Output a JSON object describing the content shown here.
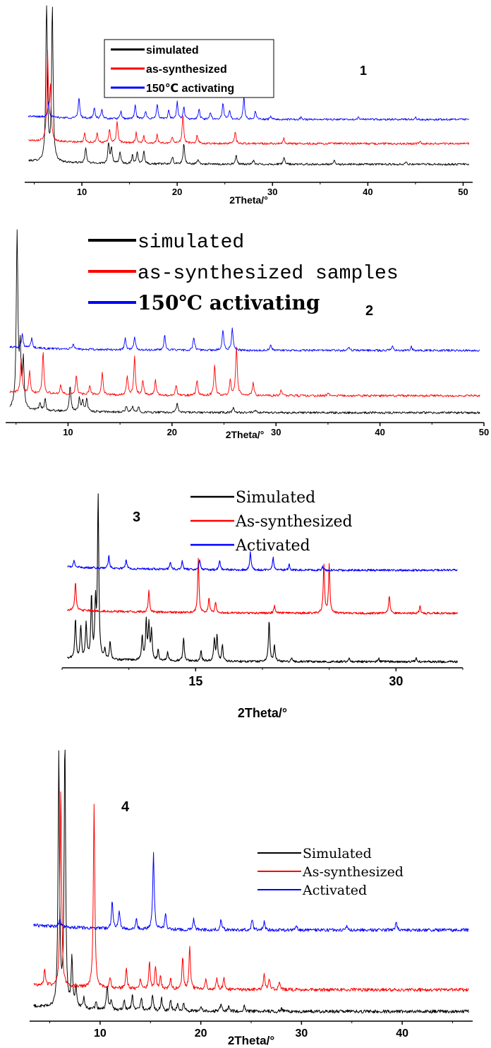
{
  "chart_data": [
    {
      "type": "line",
      "panel_label": "1",
      "xlabel": "2Theta/°",
      "xlim": [
        4,
        51
      ],
      "ticks": [
        "10",
        "20",
        "30",
        "40",
        "50"
      ],
      "tick_values": [
        10,
        20,
        30,
        40,
        50
      ],
      "legend_placement": "top-center",
      "series": [
        {
          "name": "simulated",
          "color": "#000000",
          "baseline": 0.08,
          "peaks": [
            [
              6.3,
              0.98
            ],
            [
              6.9,
              0.9
            ],
            [
              10.4,
              0.09
            ],
            [
              12.8,
              0.12
            ],
            [
              13.1,
              0.09
            ],
            [
              14.0,
              0.07
            ],
            [
              15.3,
              0.05
            ],
            [
              15.8,
              0.07
            ],
            [
              16.5,
              0.08
            ],
            [
              19.5,
              0.04
            ],
            [
              20.7,
              0.12
            ],
            [
              22.2,
              0.03
            ],
            [
              26.2,
              0.05
            ],
            [
              28.0,
              0.02
            ],
            [
              31.2,
              0.04
            ],
            [
              36.5,
              0.02
            ],
            [
              44.0,
              0.015
            ]
          ]
        },
        {
          "name": "as-synthesized",
          "color": "#ff0000",
          "baseline": 0.2,
          "peaks": [
            [
              6.4,
              0.5
            ],
            [
              6.7,
              0.3
            ],
            [
              10.3,
              0.05
            ],
            [
              11.6,
              0.06
            ],
            [
              12.9,
              0.08
            ],
            [
              13.7,
              0.13
            ],
            [
              15.7,
              0.06
            ],
            [
              16.5,
              0.04
            ],
            [
              17.9,
              0.05
            ],
            [
              19.5,
              0.04
            ],
            [
              20.6,
              0.17
            ],
            [
              22.1,
              0.05
            ],
            [
              26.1,
              0.07
            ],
            [
              31.2,
              0.03
            ],
            [
              45.5,
              0.01
            ]
          ]
        },
        {
          "name": "150℃ activating",
          "color": "#0000ff",
          "baseline": 0.34,
          "peaks": [
            [
              6.5,
              0.09
            ],
            [
              9.7,
              0.12
            ],
            [
              11.3,
              0.06
            ],
            [
              12.1,
              0.05
            ],
            [
              14.1,
              0.04
            ],
            [
              15.6,
              0.08
            ],
            [
              16.7,
              0.05
            ],
            [
              17.9,
              0.09
            ],
            [
              19.1,
              0.05
            ],
            [
              20.0,
              0.1
            ],
            [
              20.7,
              0.07
            ],
            [
              22.3,
              0.06
            ],
            [
              23.5,
              0.04
            ],
            [
              24.8,
              0.1
            ],
            [
              25.5,
              0.05
            ],
            [
              27.0,
              0.13
            ],
            [
              28.2,
              0.05
            ],
            [
              29.8,
              0.02
            ],
            [
              33.0,
              0.015
            ],
            [
              39.0,
              0.015
            ],
            [
              45.0,
              0.01
            ]
          ]
        }
      ]
    },
    {
      "type": "line",
      "panel_label": "2",
      "xlabel": "2Theta/°",
      "xlim": [
        4,
        50
      ],
      "ticks": [
        "10",
        "20",
        "30",
        "40",
        "50"
      ],
      "tick_values": [
        10,
        20,
        30,
        40,
        50
      ],
      "legend_placement": "top-center",
      "series": [
        {
          "name": "simulated",
          "color": "#000000",
          "baseline": 0.03,
          "peaks": [
            [
              5.1,
              0.95
            ],
            [
              5.4,
              0.3
            ],
            [
              5.7,
              0.25
            ],
            [
              7.3,
              0.04
            ],
            [
              7.8,
              0.06
            ],
            [
              10.2,
              0.14
            ],
            [
              11.1,
              0.07
            ],
            [
              11.4,
              0.06
            ],
            [
              11.8,
              0.07
            ],
            [
              15.6,
              0.03
            ],
            [
              16.2,
              0.03
            ],
            [
              16.8,
              0.03
            ],
            [
              20.5,
              0.05
            ],
            [
              25.9,
              0.03
            ],
            [
              28.0,
              0.01
            ]
          ]
        },
        {
          "name": "as-synthesized samples",
          "color": "#ff0000",
          "baseline": 0.12,
          "peaks": [
            [
              5.5,
              0.18
            ],
            [
              6.3,
              0.12
            ],
            [
              7.6,
              0.22
            ],
            [
              9.3,
              0.05
            ],
            [
              10.8,
              0.1
            ],
            [
              12.1,
              0.05
            ],
            [
              13.3,
              0.12
            ],
            [
              15.7,
              0.1
            ],
            [
              16.4,
              0.2
            ],
            [
              17.2,
              0.08
            ],
            [
              18.4,
              0.08
            ],
            [
              20.4,
              0.05
            ],
            [
              22.4,
              0.08
            ],
            [
              24.1,
              0.16
            ],
            [
              25.6,
              0.08
            ],
            [
              26.2,
              0.26
            ],
            [
              27.8,
              0.07
            ],
            [
              30.5,
              0.03
            ],
            [
              35.0,
              0.015
            ]
          ]
        },
        {
          "name": "150℃ activating",
          "color": "#0000ff",
          "baseline": 0.36,
          "peaks": [
            [
              5.6,
              0.07
            ],
            [
              6.5,
              0.05
            ],
            [
              10.5,
              0.03
            ],
            [
              15.5,
              0.06
            ],
            [
              16.4,
              0.07
            ],
            [
              19.3,
              0.08
            ],
            [
              22.1,
              0.07
            ],
            [
              24.9,
              0.11
            ],
            [
              25.8,
              0.12
            ],
            [
              29.5,
              0.03
            ],
            [
              37.0,
              0.02
            ],
            [
              41.2,
              0.03
            ],
            [
              43.0,
              0.02
            ]
          ]
        }
      ]
    },
    {
      "type": "line",
      "panel_label": "3",
      "xlabel": "2Theta/°",
      "xlim": [
        5,
        35
      ],
      "ticks": [
        "15",
        "30"
      ],
      "tick_values": [
        15,
        30
      ],
      "legend_placement": "top-right",
      "series": [
        {
          "name": "Simulated",
          "color": "#000000",
          "baseline": 0.01,
          "peaks": [
            [
              6.0,
              0.22
            ],
            [
              6.4,
              0.18
            ],
            [
              6.8,
              0.2
            ],
            [
              7.2,
              0.35
            ],
            [
              7.5,
              0.3
            ],
            [
              7.7,
              0.9
            ],
            [
              8.2,
              0.05
            ],
            [
              8.6,
              0.1
            ],
            [
              11.0,
              0.14
            ],
            [
              11.3,
              0.22
            ],
            [
              11.5,
              0.2
            ],
            [
              11.7,
              0.16
            ],
            [
              12.2,
              0.06
            ],
            [
              12.9,
              0.05
            ],
            [
              14.1,
              0.13
            ],
            [
              15.4,
              0.06
            ],
            [
              16.4,
              0.12
            ],
            [
              16.6,
              0.14
            ],
            [
              17.0,
              0.09
            ],
            [
              20.5,
              0.23
            ],
            [
              20.9,
              0.09
            ],
            [
              22.2,
              0.02
            ],
            [
              26.5,
              0.02
            ],
            [
              28.7,
              0.02
            ],
            [
              31.5,
              0.02
            ]
          ]
        },
        {
          "name": "As-synthesized",
          "color": "#ff0000",
          "baseline": 0.28,
          "peaks": [
            [
              6.0,
              0.16
            ],
            [
              11.5,
              0.12
            ],
            [
              15.2,
              0.3
            ],
            [
              16.0,
              0.08
            ],
            [
              16.5,
              0.06
            ],
            [
              20.9,
              0.04
            ],
            [
              24.6,
              0.27
            ],
            [
              25.0,
              0.27
            ],
            [
              29.5,
              0.1
            ],
            [
              31.8,
              0.04
            ]
          ]
        },
        {
          "name": "Activated",
          "color": "#0000ff",
          "baseline": 0.52,
          "peaks": [
            [
              5.9,
              0.04
            ],
            [
              8.5,
              0.07
            ],
            [
              9.8,
              0.05
            ],
            [
              13.1,
              0.04
            ],
            [
              14.0,
              0.05
            ],
            [
              15.3,
              0.06
            ],
            [
              16.8,
              0.05
            ],
            [
              19.1,
              0.1
            ],
            [
              20.8,
              0.07
            ],
            [
              22.0,
              0.03
            ],
            [
              24.5,
              0.02
            ]
          ]
        }
      ]
    },
    {
      "type": "line",
      "panel_label": "4",
      "xlabel": "2Theta/°",
      "xlim": [
        3,
        47
      ],
      "ticks": [
        "10",
        "20",
        "30",
        "40"
      ],
      "tick_values": [
        10,
        20,
        30,
        40
      ],
      "legend_placement": "right",
      "series": [
        {
          "name": "Simulated",
          "color": "#000000",
          "baseline": 0.02,
          "peaks": [
            [
              5.9,
              0.93
            ],
            [
              6.5,
              0.98
            ],
            [
              7.2,
              0.18
            ],
            [
              7.6,
              0.08
            ],
            [
              8.4,
              0.04
            ],
            [
              9.6,
              0.03
            ],
            [
              10.7,
              0.09
            ],
            [
              11.1,
              0.04
            ],
            [
              12.4,
              0.04
            ],
            [
              13.2,
              0.06
            ],
            [
              14.1,
              0.05
            ],
            [
              15.2,
              0.06
            ],
            [
              16.1,
              0.05
            ],
            [
              17.0,
              0.04
            ],
            [
              17.7,
              0.03
            ],
            [
              18.3,
              0.03
            ],
            [
              20.0,
              0.02
            ],
            [
              22.0,
              0.03
            ],
            [
              22.8,
              0.02
            ],
            [
              24.3,
              0.02
            ],
            [
              28.0,
              0.01
            ]
          ]
        },
        {
          "name": "As-synthesized",
          "color": "#ff0000",
          "baseline": 0.1,
          "peaks": [
            [
              4.5,
              0.06
            ],
            [
              6.1,
              0.73
            ],
            [
              9.4,
              0.68
            ],
            [
              11.0,
              0.04
            ],
            [
              12.6,
              0.08
            ],
            [
              14.0,
              0.04
            ],
            [
              14.9,
              0.1
            ],
            [
              15.5,
              0.08
            ],
            [
              16.0,
              0.05
            ],
            [
              17.0,
              0.04
            ],
            [
              18.2,
              0.12
            ],
            [
              18.9,
              0.16
            ],
            [
              20.5,
              0.04
            ],
            [
              21.6,
              0.04
            ],
            [
              22.3,
              0.05
            ],
            [
              26.3,
              0.06
            ],
            [
              26.8,
              0.04
            ],
            [
              27.8,
              0.03
            ]
          ]
        },
        {
          "name": "Activated",
          "color": "#0000ff",
          "baseline": 0.32,
          "peaks": [
            [
              6.0,
              0.03
            ],
            [
              11.2,
              0.1
            ],
            [
              11.9,
              0.07
            ],
            [
              13.6,
              0.04
            ],
            [
              15.3,
              0.28
            ],
            [
              16.5,
              0.06
            ],
            [
              19.3,
              0.04
            ],
            [
              22.0,
              0.04
            ],
            [
              25.1,
              0.04
            ],
            [
              26.3,
              0.03
            ],
            [
              29.5,
              0.02
            ],
            [
              34.5,
              0.015
            ],
            [
              39.4,
              0.03
            ]
          ]
        }
      ]
    }
  ]
}
